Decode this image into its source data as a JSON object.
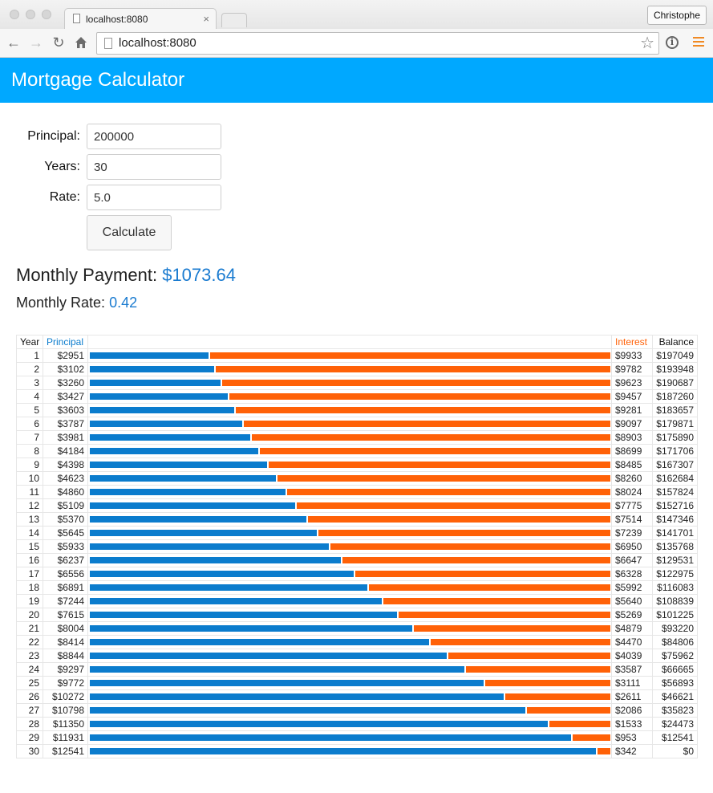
{
  "browser": {
    "tab_title": "localhost:8080",
    "tab_close": "×",
    "profile_name": "Christophe",
    "url": "localhost:8080"
  },
  "app": {
    "title": "Mortgage Calculator"
  },
  "form": {
    "principal_label": "Principal:",
    "principal_value": "200000",
    "years_label": "Years:",
    "years_value": "30",
    "rate_label": "Rate:",
    "rate_value": "5.0",
    "calculate_label": "Calculate"
  },
  "results": {
    "payment_label": "Monthly Payment:",
    "payment_value": "$1073.64",
    "rate_label": "Monthly Rate:",
    "rate_value": "0.42"
  },
  "colors": {
    "principal": "#0b7ccd",
    "interest": "#ff6107",
    "header": "#00a8ff"
  },
  "table": {
    "headers": {
      "year": "Year",
      "principal": "Principal",
      "interest": "Interest",
      "balance": "Balance"
    },
    "rows": [
      {
        "year": "1",
        "principal": "$2951",
        "interest": "$9933",
        "balance": "$197049",
        "p": 2951,
        "i": 9933
      },
      {
        "year": "2",
        "principal": "$3102",
        "interest": "$9782",
        "balance": "$193948",
        "p": 3102,
        "i": 9782
      },
      {
        "year": "3",
        "principal": "$3260",
        "interest": "$9623",
        "balance": "$190687",
        "p": 3260,
        "i": 9623
      },
      {
        "year": "4",
        "principal": "$3427",
        "interest": "$9457",
        "balance": "$187260",
        "p": 3427,
        "i": 9457
      },
      {
        "year": "5",
        "principal": "$3603",
        "interest": "$9281",
        "balance": "$183657",
        "p": 3603,
        "i": 9281
      },
      {
        "year": "6",
        "principal": "$3787",
        "interest": "$9097",
        "balance": "$179871",
        "p": 3787,
        "i": 9097
      },
      {
        "year": "7",
        "principal": "$3981",
        "interest": "$8903",
        "balance": "$175890",
        "p": 3981,
        "i": 8903
      },
      {
        "year": "8",
        "principal": "$4184",
        "interest": "$8699",
        "balance": "$171706",
        "p": 4184,
        "i": 8699
      },
      {
        "year": "9",
        "principal": "$4398",
        "interest": "$8485",
        "balance": "$167307",
        "p": 4398,
        "i": 8485
      },
      {
        "year": "10",
        "principal": "$4623",
        "interest": "$8260",
        "balance": "$162684",
        "p": 4623,
        "i": 8260
      },
      {
        "year": "11",
        "principal": "$4860",
        "interest": "$8024",
        "balance": "$157824",
        "p": 4860,
        "i": 8024
      },
      {
        "year": "12",
        "principal": "$5109",
        "interest": "$7775",
        "balance": "$152716",
        "p": 5109,
        "i": 7775
      },
      {
        "year": "13",
        "principal": "$5370",
        "interest": "$7514",
        "balance": "$147346",
        "p": 5370,
        "i": 7514
      },
      {
        "year": "14",
        "principal": "$5645",
        "interest": "$7239",
        "balance": "$141701",
        "p": 5645,
        "i": 7239
      },
      {
        "year": "15",
        "principal": "$5933",
        "interest": "$6950",
        "balance": "$135768",
        "p": 5933,
        "i": 6950
      },
      {
        "year": "16",
        "principal": "$6237",
        "interest": "$6647",
        "balance": "$129531",
        "p": 6237,
        "i": 6647
      },
      {
        "year": "17",
        "principal": "$6556",
        "interest": "$6328",
        "balance": "$122975",
        "p": 6556,
        "i": 6328
      },
      {
        "year": "18",
        "principal": "$6891",
        "interest": "$5992",
        "balance": "$116083",
        "p": 6891,
        "i": 5992
      },
      {
        "year": "19",
        "principal": "$7244",
        "interest": "$5640",
        "balance": "$108839",
        "p": 7244,
        "i": 5640
      },
      {
        "year": "20",
        "principal": "$7615",
        "interest": "$5269",
        "balance": "$101225",
        "p": 7615,
        "i": 5269
      },
      {
        "year": "21",
        "principal": "$8004",
        "interest": "$4879",
        "balance": "$93220",
        "p": 8004,
        "i": 4879
      },
      {
        "year": "22",
        "principal": "$8414",
        "interest": "$4470",
        "balance": "$84806",
        "p": 8414,
        "i": 4470
      },
      {
        "year": "23",
        "principal": "$8844",
        "interest": "$4039",
        "balance": "$75962",
        "p": 8844,
        "i": 4039
      },
      {
        "year": "24",
        "principal": "$9297",
        "interest": "$3587",
        "balance": "$66665",
        "p": 9297,
        "i": 3587
      },
      {
        "year": "25",
        "principal": "$9772",
        "interest": "$3111",
        "balance": "$56893",
        "p": 9772,
        "i": 3111
      },
      {
        "year": "26",
        "principal": "$10272",
        "interest": "$2611",
        "balance": "$46621",
        "p": 10272,
        "i": 2611
      },
      {
        "year": "27",
        "principal": "$10798",
        "interest": "$2086",
        "balance": "$35823",
        "p": 10798,
        "i": 2086
      },
      {
        "year": "28",
        "principal": "$11350",
        "interest": "$1533",
        "balance": "$24473",
        "p": 11350,
        "i": 1533
      },
      {
        "year": "29",
        "principal": "$11931",
        "interest": "$953",
        "balance": "$12541",
        "p": 11931,
        "i": 953
      },
      {
        "year": "30",
        "principal": "$12541",
        "interest": "$342",
        "balance": "$0",
        "p": 12541,
        "i": 342
      }
    ]
  }
}
